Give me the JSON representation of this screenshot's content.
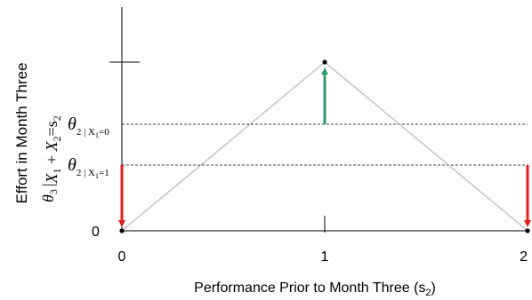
{
  "axes": {
    "x_label_text": "Performance Prior to Month Three (s",
    "x_label_sub": "2",
    "x_label_close": ")",
    "y_label": "Effort in Month Three",
    "y_zero": "0",
    "x_ticks": [
      "0",
      "1",
      "2"
    ]
  },
  "y_formula": {
    "theta": "θ",
    "sub": "3",
    "cond_bar": "|",
    "x1": "X",
    "x1_sub": "1",
    "plus": " + ",
    "x2": "X",
    "x2_sub": "2",
    "eq": "=s",
    "s_sub": "2"
  },
  "thresholds": [
    {
      "theta": "θ",
      "sub": "2 | X",
      "sub2": "1",
      "eq": "=0"
    },
    {
      "theta": "θ",
      "sub": "2 | X",
      "sub2": "1",
      "eq": "=1"
    }
  ],
  "colors": {
    "axis": "#000000",
    "triangle": "#aaaaaa",
    "dashed": "#000000",
    "green_arrow": "#2e9b6e",
    "red_arrow": "#e51c1c"
  }
}
